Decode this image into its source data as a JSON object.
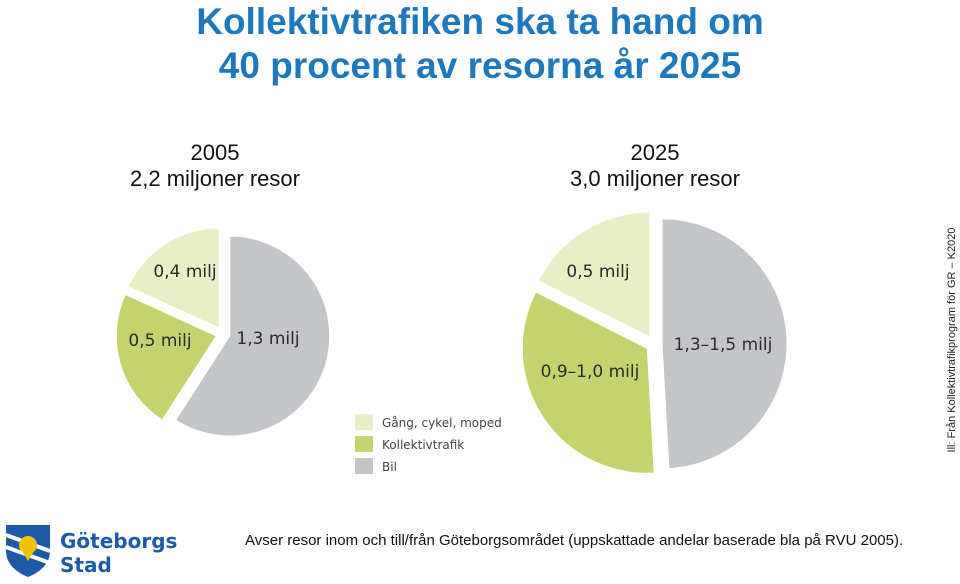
{
  "title": {
    "line1": "Kollektivtrafiken ska ta hand om",
    "line2": "40 procent av resorna år 2025"
  },
  "charts_header": [
    {
      "year": "2005",
      "total": "2,2 miljoner resor"
    },
    {
      "year": "2025",
      "total": "3,0 miljoner resor"
    }
  ],
  "colors": {
    "title": "#1e78be",
    "gang": "#e8efc6",
    "kollektivtrafik": "#c5d36e",
    "bil": "#c4c5c8"
  },
  "chart_data": [
    {
      "type": "pie",
      "title": "2005",
      "subtitle": "2,2 miljoner resor",
      "slices": [
        {
          "category": "Bil",
          "value": 1.3,
          "label": "1,3 milj"
        },
        {
          "category": "Kollektivtrafik",
          "value": 0.5,
          "label": "0,5 milj"
        },
        {
          "category": "Gång, cykel, moped",
          "value": 0.4,
          "label": "0,4 milj"
        }
      ]
    },
    {
      "type": "pie",
      "title": "2025",
      "subtitle": "3,0 miljoner resor",
      "slices": [
        {
          "category": "Bil",
          "value": 1.4,
          "label": "1,3–1,5 milj"
        },
        {
          "category": "Kollektivtrafik",
          "value": 0.95,
          "label": "0,9–1,0 milj"
        },
        {
          "category": "Gång, cykel, moped",
          "value": 0.5,
          "label": "0,5 milj"
        }
      ]
    }
  ],
  "legend": [
    {
      "label": "Gång, cykel, moped",
      "color_key": "gang"
    },
    {
      "label": "Kollektivtrafik",
      "color_key": "kollektivtrafik"
    },
    {
      "label": "Bil",
      "color_key": "bil"
    }
  ],
  "credit": "Ill: Från Kollektivtrafikprogram för GR – K2020",
  "footer": "Avser resor inom och till/från Göteborgsområdet (uppskattade andelar baserade bla på RVU 2005).",
  "logo": {
    "line1": "Göteborgs",
    "line2": "Stad"
  }
}
